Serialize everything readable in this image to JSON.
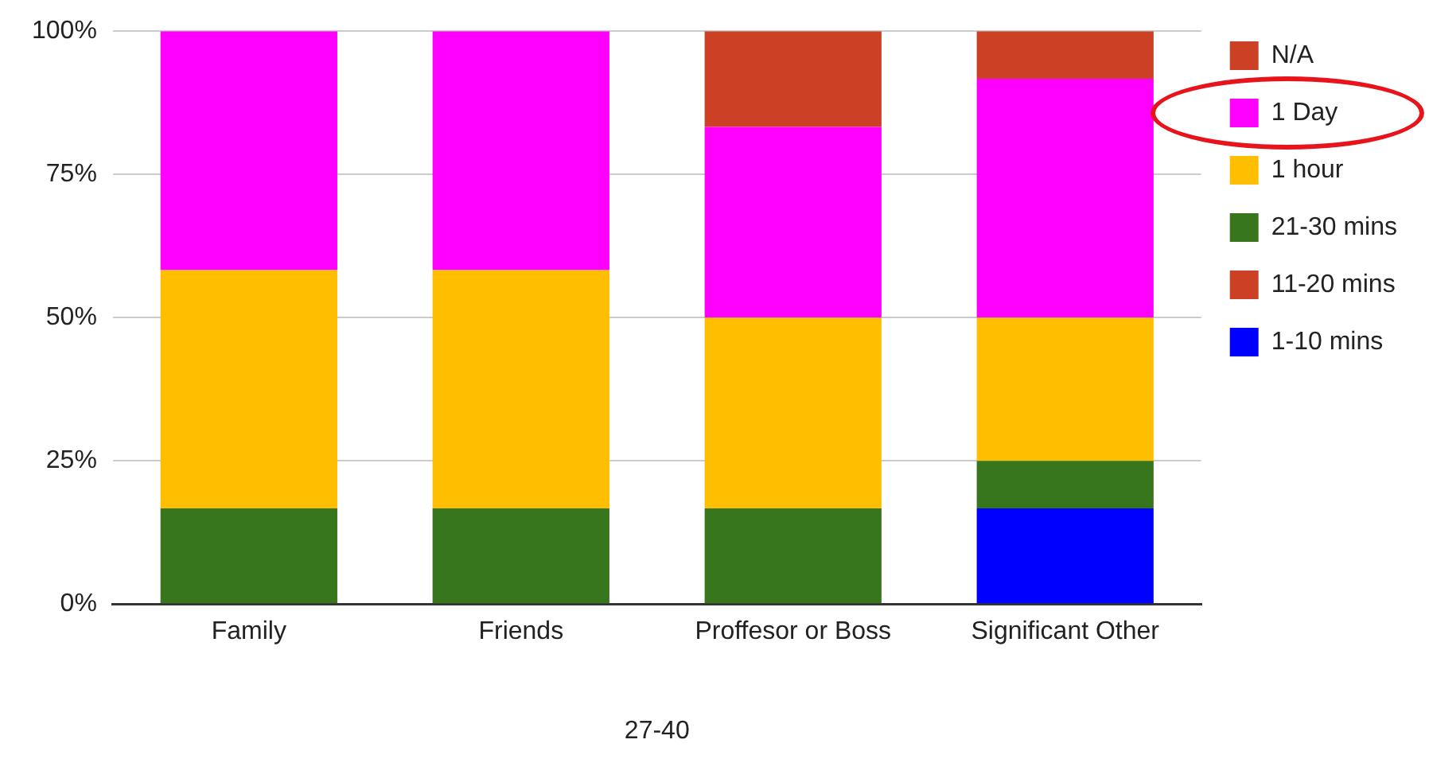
{
  "chart_data": {
    "type": "bar",
    "stacked": true,
    "xlabel": "27-40",
    "categories": [
      "Family",
      "Friends",
      "Proffesor or Boss",
      "Significant Other"
    ],
    "series": [
      {
        "name": "1-10 mins",
        "color": "#0000ff",
        "values": [
          0,
          0,
          0,
          16.7
        ]
      },
      {
        "name": "11-20 mins",
        "color": "#cc4125",
        "values": [
          0,
          0,
          0,
          0
        ]
      },
      {
        "name": "21-30 mins",
        "color": "#38761d",
        "values": [
          16.7,
          16.7,
          16.7,
          8.3
        ]
      },
      {
        "name": "1 hour",
        "color": "#ffbf00",
        "values": [
          41.6,
          41.6,
          33.3,
          25
        ]
      },
      {
        "name": "1 Day",
        "color": "#ff00ff",
        "values": [
          41.7,
          41.7,
          33.3,
          41.7
        ]
      },
      {
        "name": "N/A",
        "color": "#cc4125",
        "values": [
          0,
          0,
          16.7,
          8.3
        ]
      }
    ],
    "ylim": [
      0,
      100
    ],
    "yticks": [
      {
        "value": 0,
        "label": "0%"
      },
      {
        "value": 25,
        "label": "25%"
      },
      {
        "value": 50,
        "label": "50%"
      },
      {
        "value": 75,
        "label": "75%"
      },
      {
        "value": 100,
        "label": "100%"
      }
    ],
    "grid": "y",
    "legend": "top right"
  }
}
